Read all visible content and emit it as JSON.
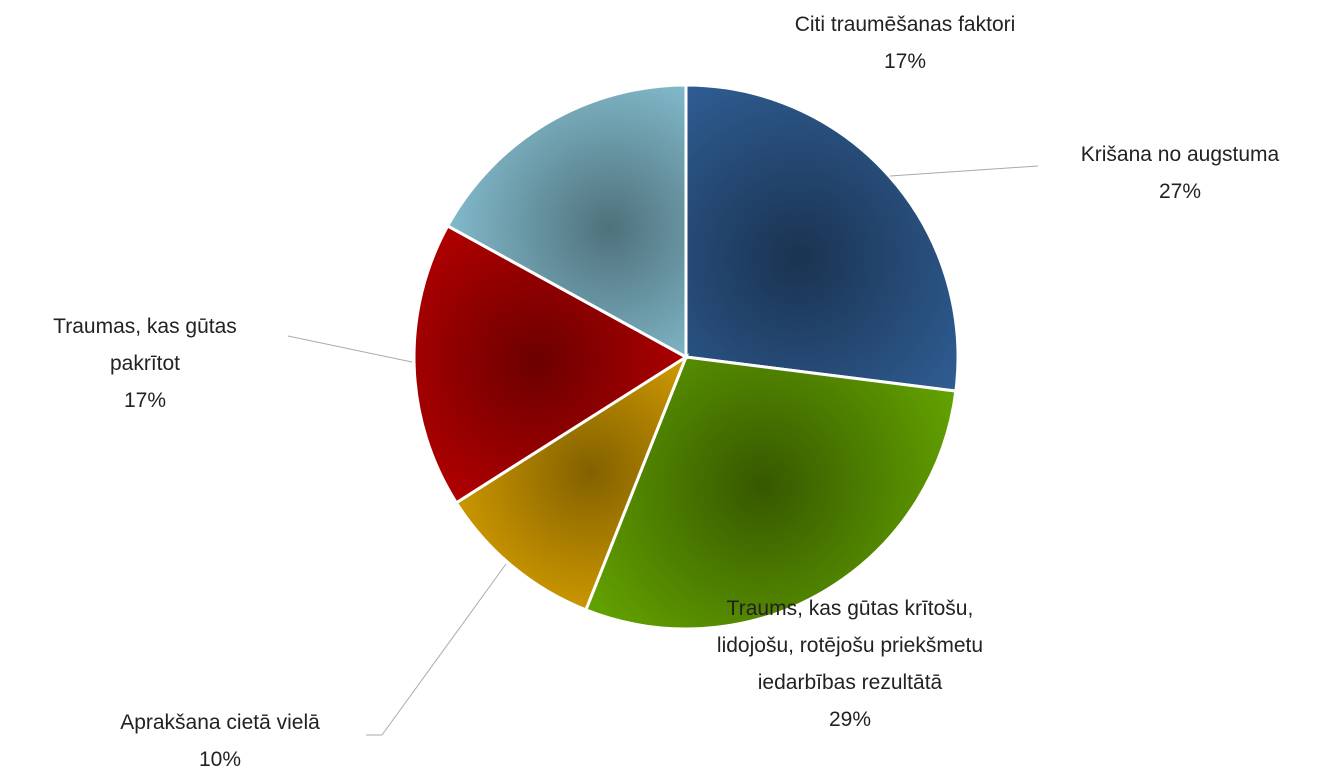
{
  "chart_data": {
    "type": "pie",
    "categories": [
      "Krišana no augstuma",
      "Traums, kas gūtas krītošu, lidojošu, rotējošu priekšmetu iedarbības rezultātā",
      "Aprakšana cietā vielā",
      "Traumas, kas gūtas pakrītot",
      "Citi traumēšanas faktori"
    ],
    "values": [
      27,
      29,
      10,
      17,
      17
    ],
    "value_labels": [
      "27%",
      "29%",
      "10%",
      "17%",
      "17%"
    ],
    "colors": [
      "#2f5d93",
      "#62a000",
      "#eeb000",
      "#c40000",
      "#8fcde0"
    ]
  }
}
